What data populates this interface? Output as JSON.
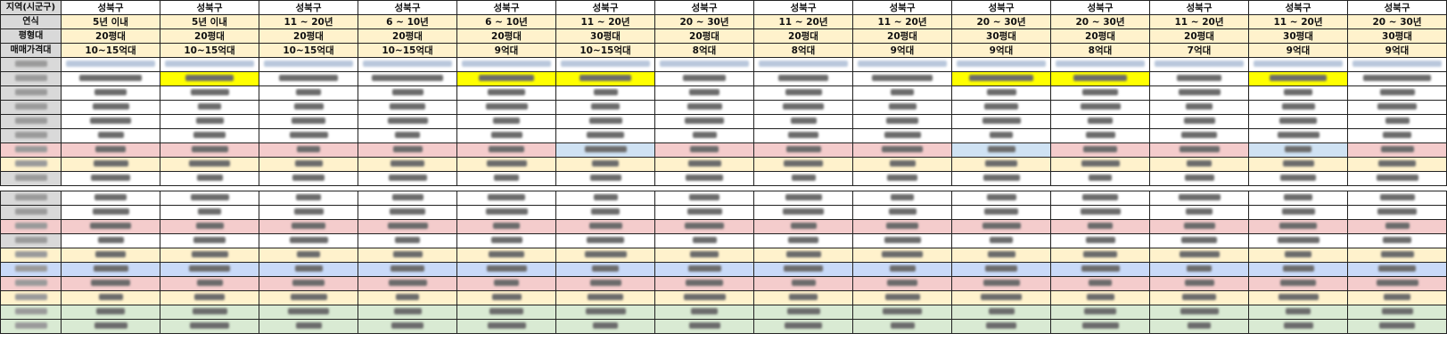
{
  "header_labels": {
    "region": "지역(시군구)",
    "age": "연식",
    "size": "평형대",
    "price": "매매가격대"
  },
  "columns": [
    {
      "region": "성북구",
      "age": "5년 이내",
      "size": "20평대",
      "price": "10~15억대"
    },
    {
      "region": "성북구",
      "age": "5년 이내",
      "size": "20평대",
      "price": "10~15억대"
    },
    {
      "region": "성북구",
      "age": "11 ~ 20년",
      "size": "20평대",
      "price": "10~15억대"
    },
    {
      "region": "성북구",
      "age": "6 ~ 10년",
      "size": "20평대",
      "price": "10~15억대"
    },
    {
      "region": "성북구",
      "age": "6 ~ 10년",
      "size": "20평대",
      "price": "9억대"
    },
    {
      "region": "성북구",
      "age": "11 ~ 20년",
      "size": "30평대",
      "price": "10~15억대"
    },
    {
      "region": "성북구",
      "age": "20 ~ 30년",
      "size": "20평대",
      "price": "8억대"
    },
    {
      "region": "성북구",
      "age": "11 ~ 20년",
      "size": "20평대",
      "price": "8억대"
    },
    {
      "region": "성북구",
      "age": "11 ~ 20년",
      "size": "20평대",
      "price": "9억대"
    },
    {
      "region": "성북구",
      "age": "20 ~ 30년",
      "size": "30평대",
      "price": "9억대"
    },
    {
      "region": "성북구",
      "age": "20 ~ 30년",
      "size": "20평대",
      "price": "8억대"
    },
    {
      "region": "성북구",
      "age": "11 ~ 20년",
      "size": "20평대",
      "price": "7억대"
    },
    {
      "region": "성북구",
      "age": "11 ~ 20년",
      "size": "30평대",
      "price": "9억대"
    },
    {
      "region": "성북구",
      "age": "20 ~ 30년",
      "size": "30평대",
      "price": "9억대"
    }
  ],
  "colors": {
    "label_gray": "#d9d9d9",
    "cream": "#fff2cc",
    "highlight_yellow": "#ffff00",
    "pink": "#f4cccc",
    "blue": "#cfe2f3",
    "green": "#d9ead3"
  },
  "blurred_rows": {
    "count_upper": 10,
    "count_lower": 10,
    "yellow_highlight_columns_row2": [
      1,
      4,
      5,
      9,
      10,
      12
    ],
    "blue_highlight_columns_row7": [
      5,
      9,
      12
    ]
  }
}
